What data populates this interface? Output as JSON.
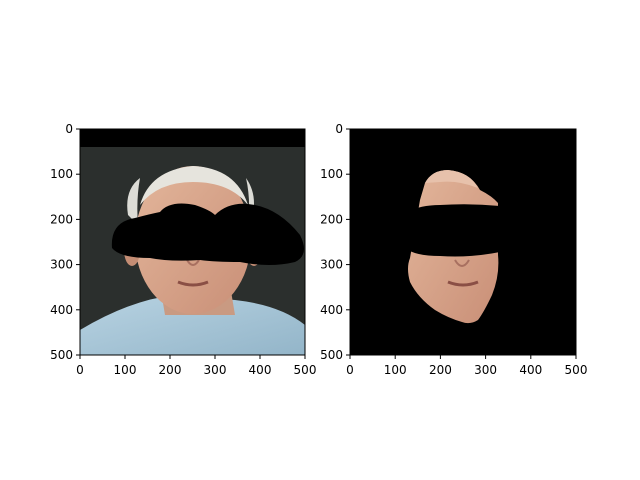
{
  "figure": {
    "panels": [
      {
        "id": "left",
        "content": "original face image with eye region masked by a black blob"
      },
      {
        "id": "right",
        "content": "segmented face region on black background with eye region masked"
      }
    ]
  },
  "chart_data": [
    {
      "type": "image",
      "title": "",
      "xlabel": "",
      "ylabel": "",
      "xlim": [
        0,
        500
      ],
      "ylim": [
        500,
        0
      ],
      "xticks": [
        0,
        100,
        200,
        300,
        400,
        500
      ],
      "yticks": [
        0,
        100,
        200,
        300,
        400,
        500
      ],
      "xtick_labels": [
        "0",
        "100",
        "200",
        "300",
        "400",
        "500"
      ],
      "ytick_labels": [
        "0",
        "100",
        "200",
        "300",
        "400",
        "500"
      ],
      "grid": false
    },
    {
      "type": "image",
      "title": "",
      "xlabel": "",
      "ylabel": "",
      "xlim": [
        0,
        500
      ],
      "ylim": [
        500,
        0
      ],
      "xticks": [
        0,
        100,
        200,
        300,
        400,
        500
      ],
      "yticks": [
        0,
        100,
        200,
        300,
        400,
        500
      ],
      "xtick_labels": [
        "0",
        "100",
        "200",
        "300",
        "400",
        "500"
      ],
      "ytick_labels": [
        "0",
        "100",
        "200",
        "300",
        "400",
        "500"
      ],
      "grid": false
    }
  ],
  "colors": {
    "background": "#ffffff",
    "mask": "#000000",
    "skin": "#d9a98c",
    "shirt": "#a9c6d8",
    "hair": "#e3e3de",
    "room_dark": "#2a2d2b"
  }
}
